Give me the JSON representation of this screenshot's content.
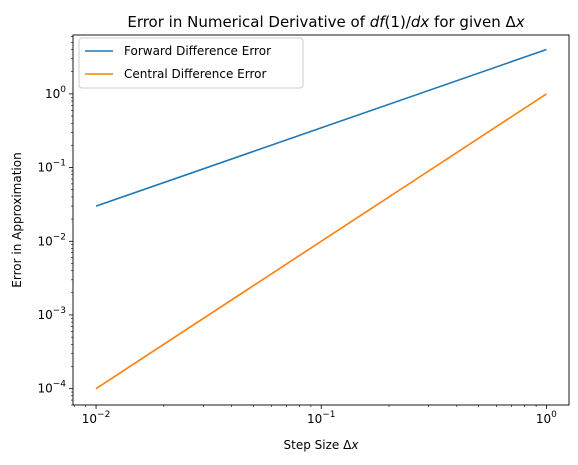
{
  "chart_data": {
    "type": "line",
    "title_parts": {
      "before": "Error in Numerical Derivative of ",
      "math": "df",
      "mid": "(1)/",
      "math2": "dx",
      "after": " for given Δ",
      "math3": "x"
    },
    "xlabel_parts": {
      "text": "Step Size Δ",
      "math": "x"
    },
    "ylabel": "Error in Approximation",
    "xscale": "log",
    "yscale": "log",
    "xlim": [
      0.0079,
      1.26
    ],
    "ylim": [
      6e-05,
      6.3
    ],
    "grid": false,
    "legend_position": "top-left",
    "x_ticks": [
      {
        "value": 0.01,
        "base": "10",
        "exp": "−2"
      },
      {
        "value": 0.1,
        "base": "10",
        "exp": "−1"
      },
      {
        "value": 1,
        "base": "10",
        "exp": "0"
      }
    ],
    "y_ticks": [
      {
        "value": 0.0001,
        "base": "10",
        "exp": "−4"
      },
      {
        "value": 0.001,
        "base": "10",
        "exp": "−3"
      },
      {
        "value": 0.01,
        "base": "10",
        "exp": "−2"
      },
      {
        "value": 0.1,
        "base": "10",
        "exp": "−1"
      },
      {
        "value": 1,
        "base": "10",
        "exp": "0"
      }
    ],
    "series": [
      {
        "name": "Forward Difference Error",
        "color": "#1f77b4",
        "x": [
          0.01,
          1
        ],
        "y": [
          0.03,
          4
        ]
      },
      {
        "name": "Central Difference Error",
        "color": "#ff7f0e",
        "x": [
          0.01,
          1
        ],
        "y": [
          0.0001,
          1
        ]
      }
    ]
  }
}
